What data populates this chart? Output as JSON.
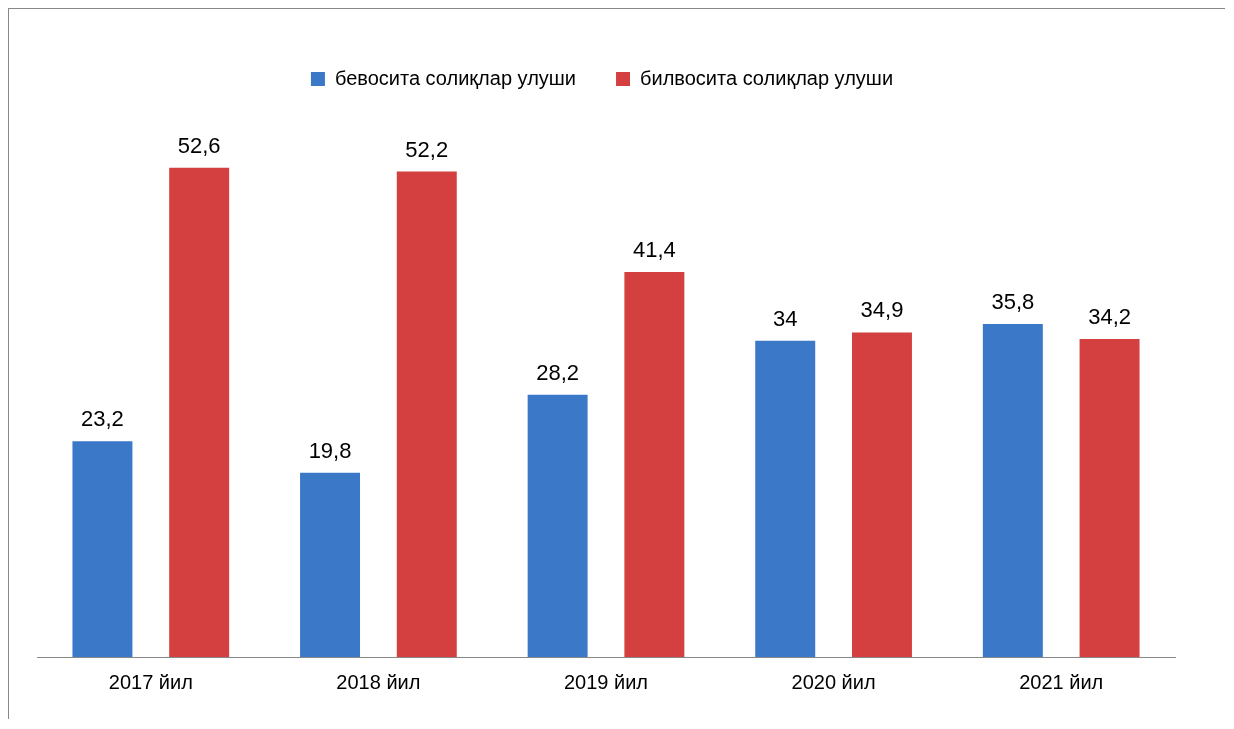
{
  "chart_data": {
    "type": "bar",
    "categories": [
      "2017 йил",
      "2018 йил",
      "2019 йил",
      "2020 йил",
      "2021 йил"
    ],
    "series": [
      {
        "name": "бевосита солиқлар улуши",
        "color": "#3c78c8",
        "values": [
          23.2,
          19.8,
          28.2,
          34,
          35.8
        ],
        "value_labels": [
          "23,2",
          "19,8",
          "28,2",
          "34",
          "35,8"
        ]
      },
      {
        "name": "билвосита солиқлар улуши",
        "color": "#d43f3f",
        "values": [
          52.6,
          52.2,
          41.4,
          34.9,
          34.2
        ],
        "value_labels": [
          "52,6",
          "52,2",
          "41,4",
          "34,9",
          "34,2"
        ]
      }
    ],
    "relative": false,
    "legend": "top",
    "grid": false
  }
}
